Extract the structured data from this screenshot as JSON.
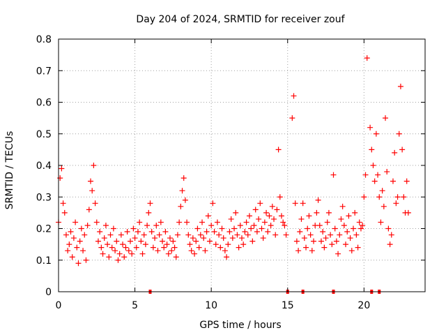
{
  "colors": {
    "series": "#ff0000",
    "grid": "#a0a0a0",
    "axis": "#000000"
  },
  "chart_data": {
    "type": "scatter",
    "title": "Day 204 of 2024, SRMTID for receiver zouf",
    "xlabel": "GPS time / hours",
    "ylabel": "SRMTID / TECUs",
    "xlim": [
      0,
      24
    ],
    "ylim": [
      0,
      0.8
    ],
    "xticks": [
      0,
      5,
      10,
      15,
      20
    ],
    "xtick_labels": [
      "0",
      "5",
      "10",
      "15",
      "20"
    ],
    "yticks": [
      0,
      0.1,
      0.2,
      0.3,
      0.4,
      0.5,
      0.6,
      0.7,
      0.8
    ],
    "ytick_labels": [
      "0",
      "0.1",
      "0.2",
      "0.3",
      "0.4",
      "0.5",
      "0.6",
      "0.7",
      "0.8"
    ],
    "grid": true,
    "marker": "plus",
    "series": [
      {
        "name": "SRMTID",
        "x": [
          0.0,
          0.1,
          0.2,
          0.3,
          0.4,
          0.5,
          0.6,
          0.7,
          0.8,
          0.9,
          1.0,
          1.1,
          1.2,
          1.3,
          1.4,
          1.5,
          1.6,
          1.7,
          1.8,
          1.9,
          2.0,
          2.1,
          2.2,
          2.3,
          2.4,
          2.5,
          2.6,
          2.7,
          2.8,
          2.9,
          3.0,
          3.1,
          3.2,
          3.3,
          3.4,
          3.5,
          3.6,
          3.7,
          3.8,
          3.9,
          4.0,
          4.1,
          4.2,
          4.3,
          4.4,
          4.5,
          4.6,
          4.7,
          4.8,
          4.9,
          5.0,
          5.1,
          5.2,
          5.3,
          5.4,
          5.5,
          5.6,
          5.7,
          5.8,
          5.9,
          6.0,
          6.1,
          6.2,
          6.3,
          6.4,
          6.5,
          6.6,
          6.7,
          6.8,
          6.9,
          7.0,
          7.1,
          7.2,
          7.3,
          7.4,
          7.5,
          7.6,
          7.7,
          7.8,
          7.9,
          8.0,
          8.1,
          8.2,
          8.3,
          8.4,
          8.5,
          8.6,
          8.7,
          8.8,
          8.9,
          9.0,
          9.1,
          9.2,
          9.3,
          9.4,
          9.5,
          9.6,
          9.7,
          9.8,
          9.9,
          10.0,
          10.1,
          10.2,
          10.3,
          10.4,
          10.5,
          10.6,
          10.7,
          10.8,
          10.9,
          11.0,
          11.1,
          11.2,
          11.3,
          11.4,
          11.5,
          11.6,
          11.7,
          11.8,
          11.9,
          12.0,
          12.1,
          12.2,
          12.3,
          12.4,
          12.5,
          12.6,
          12.7,
          12.8,
          12.9,
          13.0,
          13.1,
          13.2,
          13.3,
          13.4,
          13.5,
          13.6,
          13.7,
          13.8,
          13.9,
          14.0,
          14.1,
          14.2,
          14.3,
          14.4,
          14.5,
          14.6,
          14.7,
          14.8,
          14.9,
          15.3,
          15.4,
          15.5,
          15.6,
          15.7,
          15.8,
          15.9,
          16.0,
          16.1,
          16.2,
          16.3,
          16.4,
          16.5,
          16.6,
          16.7,
          16.8,
          16.9,
          17.0,
          17.1,
          17.2,
          17.3,
          17.4,
          17.5,
          17.6,
          17.7,
          17.8,
          17.9,
          18.0,
          18.1,
          18.2,
          18.3,
          18.4,
          18.5,
          18.6,
          18.7,
          18.8,
          18.9,
          19.0,
          19.1,
          19.2,
          19.3,
          19.4,
          19.5,
          19.6,
          19.7,
          19.8,
          19.9,
          20.0,
          20.1,
          20.2,
          20.4,
          20.5,
          20.6,
          20.7,
          20.8,
          20.9,
          21.0,
          21.1,
          21.2,
          21.3,
          21.4,
          21.5,
          21.6,
          21.7,
          21.8,
          21.9,
          22.0,
          22.1,
          22.2,
          22.3,
          22.4,
          22.5,
          22.6,
          22.7,
          22.8,
          22.9
        ],
        "y": [
          0.22,
          0.36,
          0.39,
          0.28,
          0.25,
          0.18,
          0.13,
          0.15,
          0.19,
          0.11,
          0.17,
          0.22,
          0.14,
          0.09,
          0.16,
          0.2,
          0.13,
          0.18,
          0.1,
          0.21,
          0.26,
          0.35,
          0.32,
          0.4,
          0.28,
          0.22,
          0.16,
          0.19,
          0.14,
          0.12,
          0.17,
          0.21,
          0.15,
          0.11,
          0.18,
          0.14,
          0.2,
          0.13,
          0.16,
          0.1,
          0.12,
          0.18,
          0.15,
          0.11,
          0.14,
          0.19,
          0.13,
          0.16,
          0.12,
          0.2,
          0.17,
          0.14,
          0.19,
          0.22,
          0.16,
          0.12,
          0.18,
          0.15,
          0.21,
          0.25,
          0.28,
          0.19,
          0.14,
          0.17,
          0.21,
          0.13,
          0.18,
          0.22,
          0.16,
          0.14,
          0.19,
          0.15,
          0.12,
          0.17,
          0.13,
          0.16,
          0.14,
          0.11,
          0.18,
          0.22,
          0.27,
          0.32,
          0.36,
          0.29,
          0.22,
          0.18,
          0.15,
          0.13,
          0.17,
          0.12,
          0.16,
          0.2,
          0.14,
          0.18,
          0.22,
          0.17,
          0.13,
          0.19,
          0.24,
          0.16,
          0.21,
          0.28,
          0.19,
          0.15,
          0.22,
          0.18,
          0.14,
          0.2,
          0.17,
          0.13,
          0.11,
          0.15,
          0.19,
          0.23,
          0.17,
          0.2,
          0.25,
          0.18,
          0.14,
          0.21,
          0.17,
          0.15,
          0.19,
          0.22,
          0.18,
          0.24,
          0.2,
          0.16,
          0.21,
          0.26,
          0.19,
          0.23,
          0.28,
          0.2,
          0.17,
          0.22,
          0.25,
          0.19,
          0.24,
          0.21,
          0.27,
          0.23,
          0.18,
          0.26,
          0.45,
          0.3,
          0.24,
          0.22,
          0.21,
          0.18,
          0.55,
          0.62,
          0.28,
          0.16,
          0.13,
          0.19,
          0.23,
          0.28,
          0.17,
          0.14,
          0.2,
          0.24,
          0.18,
          0.13,
          0.16,
          0.21,
          0.25,
          0.29,
          0.21,
          0.16,
          0.19,
          0.14,
          0.17,
          0.22,
          0.25,
          0.18,
          0.15,
          0.37,
          0.2,
          0.16,
          0.12,
          0.18,
          0.23,
          0.27,
          0.21,
          0.15,
          0.19,
          0.24,
          0.17,
          0.13,
          0.2,
          0.25,
          0.18,
          0.14,
          0.22,
          0.2,
          0.21,
          0.3,
          0.37,
          0.74,
          0.52,
          0.45,
          0.4,
          0.35,
          0.5,
          0.37,
          0.3,
          0.22,
          0.32,
          0.27,
          0.55,
          0.38,
          0.2,
          0.15,
          0.18,
          0.35,
          0.44,
          0.28,
          0.3,
          0.5,
          0.65,
          0.45,
          0.3,
          0.25,
          0.35,
          0.25
        ]
      }
    ],
    "zero_markers": {
      "x": [
        6.0,
        15.0,
        16.0,
        18.0,
        20.5,
        21.0
      ]
    }
  }
}
